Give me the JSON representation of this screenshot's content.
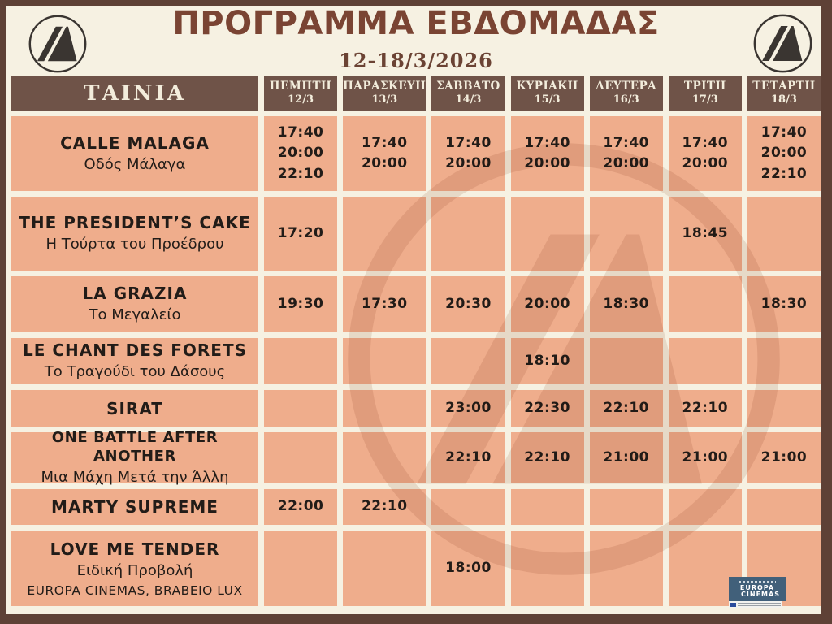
{
  "header": {
    "title": "ΠΡΟΓΡΑΜΜΑ ΕΒΔΟΜΑΔΑΣ",
    "date_range": "12-18/3/2026",
    "logo": "danaos-cinema-triangle-logo"
  },
  "colors": {
    "background": "#f6f1e2",
    "frame": "#5e4136",
    "header_bg": "#6f5348",
    "header_text": "#f3eddc",
    "cell_bg": "#efad8c",
    "title_text": "#7a4433",
    "time_text": "#221c18",
    "europa_blue": "#41607a"
  },
  "table": {
    "movie_header": "ΤΑΙΝΙΑ",
    "days": [
      {
        "name": "ΠΕΜΠΤΗ",
        "date": "12/3"
      },
      {
        "name": "ΠΑΡΑΣΚΕΥΗ",
        "date": "13/3"
      },
      {
        "name": "ΣΑΒΒΑΤΟ",
        "date": "14/3"
      },
      {
        "name": "ΚΥΡΙΑΚΗ",
        "date": "15/3"
      },
      {
        "name": "ΔΕΥΤΕΡΑ",
        "date": "16/3"
      },
      {
        "name": "ΤΡΙΤΗ",
        "date": "17/3"
      },
      {
        "name": "ΤΕΤΑΡΤΗ",
        "date": "18/3"
      }
    ],
    "rows": [
      {
        "title": "CALLE MALAGA",
        "subtitle": "Οδός Μάλαγα",
        "note": "",
        "times": [
          [
            "17:40",
            "20:00",
            "22:10"
          ],
          [
            "17:40",
            "20:00"
          ],
          [
            "17:40",
            "20:00"
          ],
          [
            "17:40",
            "20:00"
          ],
          [
            "17:40",
            "20:00"
          ],
          [
            "17:40",
            "20:00"
          ],
          [
            "17:40",
            "20:00",
            "22:10"
          ]
        ]
      },
      {
        "title": "THE PRESIDENT’S CAKE",
        "subtitle": "Η Τούρτα του Προέδρου",
        "note": "",
        "times": [
          [
            "17:20"
          ],
          [],
          [],
          [],
          [],
          [
            "18:45"
          ],
          []
        ]
      },
      {
        "title": "LA GRAZIA",
        "subtitle": "Το Μεγαλείο",
        "note": "",
        "times": [
          [
            "19:30"
          ],
          [
            "17:30"
          ],
          [
            "20:30"
          ],
          [
            "20:00"
          ],
          [
            "18:30"
          ],
          [],
          [
            "18:30"
          ]
        ]
      },
      {
        "title": "LE CHANT DES FORETS",
        "subtitle": "Το Τραγούδι του Δάσους",
        "note": "",
        "times": [
          [],
          [],
          [],
          [
            "18:10"
          ],
          [],
          [],
          []
        ]
      },
      {
        "title": "SIRAT",
        "subtitle": "",
        "note": "",
        "times": [
          [],
          [],
          [
            "23:00"
          ],
          [
            "22:30"
          ],
          [
            "22:10"
          ],
          [
            "22:10"
          ],
          []
        ]
      },
      {
        "title": "ONE BATTLE AFTER ANOTHER",
        "subtitle": "Μια Μάχη Μετά την Άλλη",
        "note": "",
        "times": [
          [],
          [],
          [
            "22:10"
          ],
          [
            "22:10"
          ],
          [
            "21:00"
          ],
          [
            "21:00"
          ],
          [
            "21:00"
          ]
        ]
      },
      {
        "title": "MARTY SUPREME",
        "subtitle": "",
        "note": "",
        "times": [
          [
            "22:00"
          ],
          [
            "22:10"
          ],
          [],
          [],
          [],
          [],
          []
        ]
      },
      {
        "title": "LOVE ME TENDER",
        "subtitle": "Ειδική Προβολή",
        "note": "EUROPA CINEMAS, BRABEIO LUX",
        "times": [
          [],
          [],
          [
            "18:00"
          ],
          [],
          [],
          [],
          []
        ]
      }
    ]
  },
  "badges": {
    "europa_line1": "EUROPA",
    "europa_line2": "CINEMAS"
  }
}
